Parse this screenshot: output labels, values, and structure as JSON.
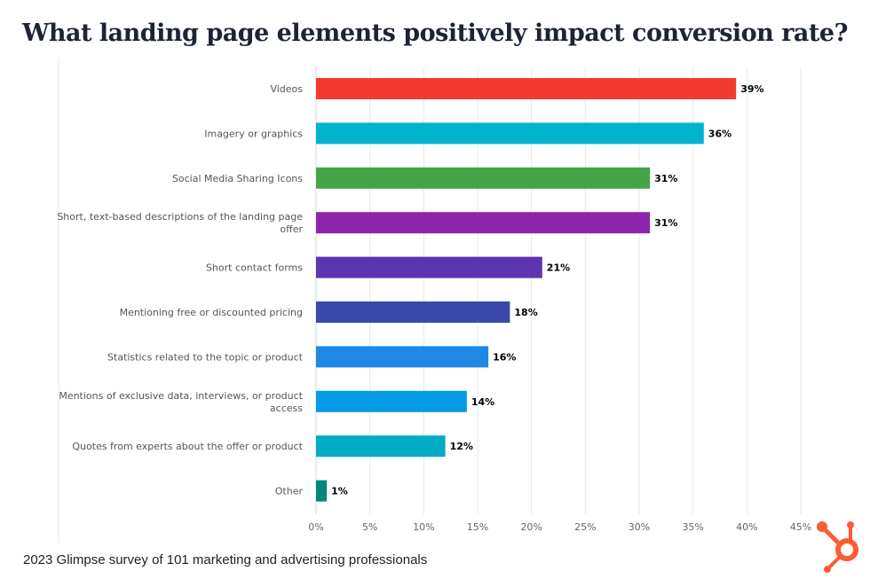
{
  "chart_data": {
    "type": "bar",
    "orientation": "horizontal",
    "title": "What landing page elements positively impact conversion rate?",
    "categories": [
      "Videos",
      "Imagery or graphics",
      "Social Media Sharing Icons",
      "Short, text-based descriptions of the landing page offer",
      "Short contact forms",
      "Mentioning free or discounted pricing",
      "Statistics related to the topic or product",
      "Mentions of exclusive data, interviews, or product access",
      "Quotes from experts about the offer or product",
      "Other"
    ],
    "category_lines": [
      [
        "Videos"
      ],
      [
        "Imagery or graphics"
      ],
      [
        "Social Media Sharing Icons"
      ],
      [
        "Short, text-based descriptions of the landing page",
        "offer"
      ],
      [
        "Short contact forms"
      ],
      [
        "Mentioning free or discounted pricing"
      ],
      [
        "Statistics related to the topic or product"
      ],
      [
        "Mentions of exclusive data, interviews, or product",
        "access"
      ],
      [
        "Quotes from experts about the offer or product"
      ],
      [
        "Other"
      ]
    ],
    "values": [
      39,
      36,
      31,
      31,
      21,
      18,
      16,
      14,
      12,
      1
    ],
    "data_labels": [
      "39%",
      "36%",
      "31%",
      "31%",
      "21%",
      "18%",
      "16%",
      "14%",
      "12%",
      "1%"
    ],
    "colors": [
      "#f23a2f",
      "#00b4cf",
      "#43a547",
      "#8e24aa",
      "#5e35b1",
      "#3949ab",
      "#1e88e5",
      "#039be5",
      "#00acc1",
      "#00897b"
    ],
    "xlim": [
      0,
      45
    ],
    "xticks": [
      "0%",
      "5%",
      "10%",
      "15%",
      "20%",
      "25%",
      "30%",
      "35%",
      "40%",
      "45%"
    ],
    "grid": true,
    "xlabel": "",
    "ylabel": ""
  },
  "footer": "2023 Glimpse survey of 101 marketing and advertising professionals",
  "logo": {
    "name": "hubspot-sprocket-logo",
    "color": "#ff5c35"
  }
}
